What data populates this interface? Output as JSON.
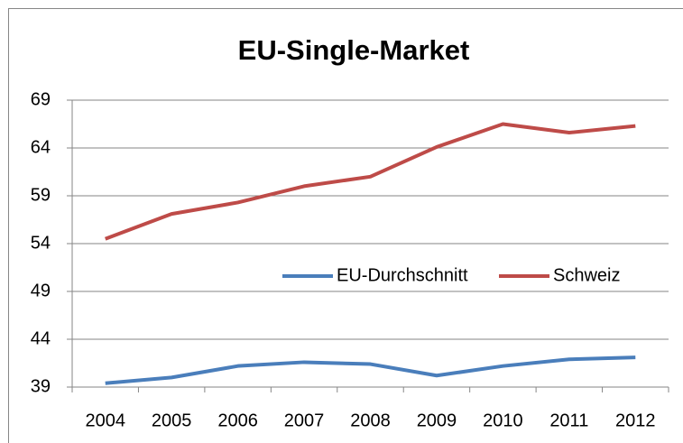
{
  "chart_data": {
    "type": "line",
    "title": "EU-Single-Market",
    "categories": [
      "2004",
      "2005",
      "2006",
      "2007",
      "2008",
      "2009",
      "2010",
      "2011",
      "2012"
    ],
    "series": [
      {
        "name": "EU-Durchschnitt",
        "color": "#4a7ebb",
        "values": [
          39.4,
          40.0,
          41.2,
          41.6,
          41.4,
          40.2,
          41.2,
          41.9,
          42.1
        ]
      },
      {
        "name": "Schweiz",
        "color": "#be4b48",
        "values": [
          54.5,
          57.1,
          58.3,
          60.0,
          61.0,
          64.1,
          66.5,
          65.6,
          66.3
        ]
      }
    ],
    "ylim": [
      39,
      69
    ],
    "yticks": [
      39,
      44,
      49,
      54,
      59,
      64,
      69
    ],
    "grid": true,
    "legend": "right"
  }
}
